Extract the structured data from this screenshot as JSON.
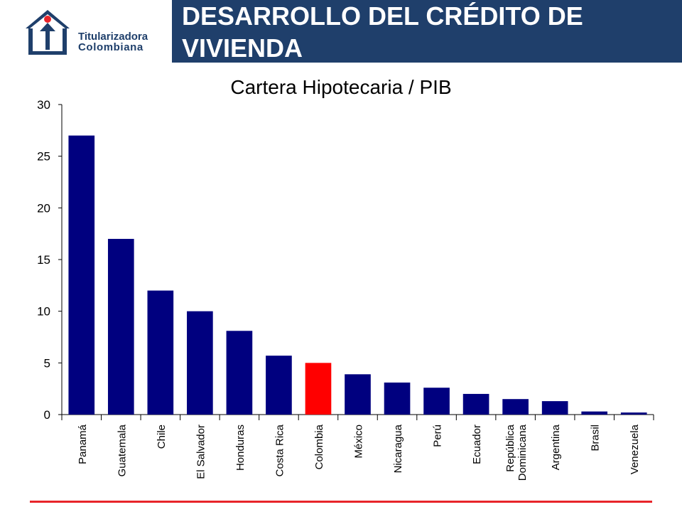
{
  "header": {
    "title": "DESARROLLO  DEL CRÉDITO DE VIVIENDA",
    "logo_line1": "Titularizadora",
    "logo_line2": "Colombiana"
  },
  "colors": {
    "header_bg": "#1f3f6b",
    "bar_default": "#00007f",
    "bar_highlight": "#ff0000",
    "rule": "#e8242a"
  },
  "chart_data": {
    "type": "bar",
    "title": "Cartera Hipotecaria / PIB",
    "xlabel": "",
    "ylabel": "",
    "ylim": [
      0,
      30
    ],
    "yticks": [
      0,
      5,
      10,
      15,
      20,
      25,
      30
    ],
    "grid": false,
    "categories": [
      "Panamá",
      "Guatemala",
      "Chile",
      "El Salvador",
      "Honduras",
      "Costa Rica",
      "Colombia",
      "México",
      "Nicaragua",
      "Perú",
      "Ecuador",
      "República Dominicana",
      "Argentina",
      "Brasil",
      "Venezuela"
    ],
    "values": [
      27.0,
      17.0,
      12.0,
      10.0,
      8.1,
      5.7,
      5.0,
      3.9,
      3.1,
      2.6,
      2.0,
      1.5,
      1.3,
      0.3,
      0.2
    ],
    "highlight": "Colombia"
  }
}
